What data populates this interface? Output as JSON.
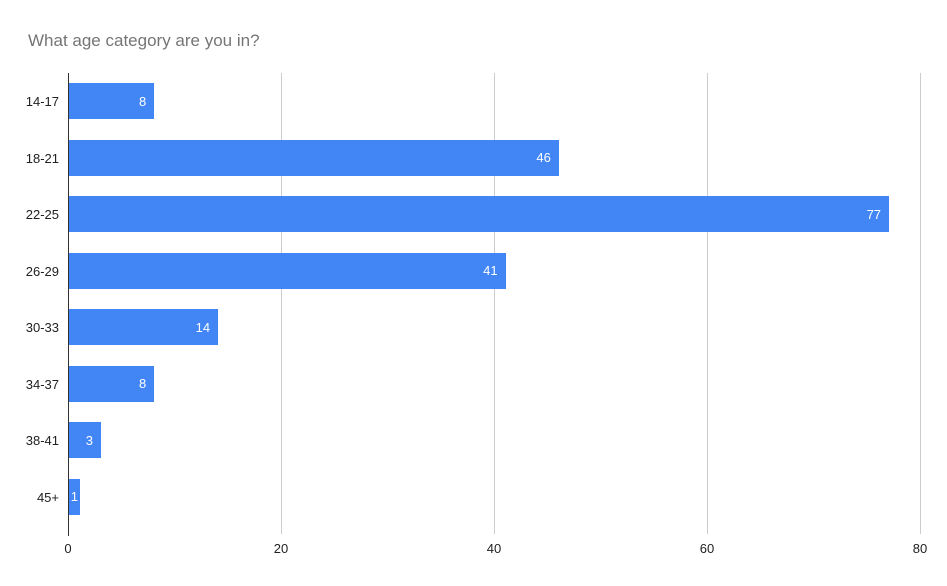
{
  "chart_data": {
    "type": "bar",
    "orientation": "horizontal",
    "title": "What age category are you in?",
    "categories": [
      "14-17",
      "18-21",
      "22-25",
      "26-29",
      "30-33",
      "34-37",
      "38-41",
      "45+"
    ],
    "values": [
      8,
      46,
      77,
      41,
      14,
      8,
      3,
      1
    ],
    "xlabel": "",
    "ylabel": "",
    "xlim": [
      0,
      80
    ],
    "x_ticks": [
      0,
      20,
      40,
      60,
      80
    ],
    "grid": "vertical",
    "legend": "none",
    "colors": {
      "bar": "#4285f4",
      "value_label": "#ffffff",
      "title": "#757575",
      "axis_text": "#212121",
      "gridline": "#cccccc",
      "baseline": "#333333",
      "background": "#ffffff"
    }
  }
}
